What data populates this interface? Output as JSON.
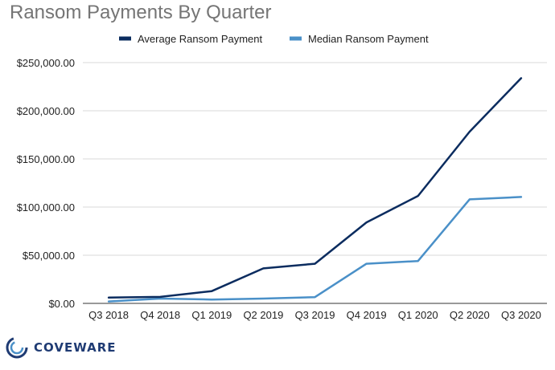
{
  "chart_data": {
    "type": "line",
    "title": "Ransom Payments By Quarter",
    "categories": [
      "Q3 2018",
      "Q4 2018",
      "Q1 2019",
      "Q2 2019",
      "Q3 2019",
      "Q4 2019",
      "Q1 2020",
      "Q2 2020",
      "Q3 2020"
    ],
    "series": [
      {
        "name": "Average Ransom Payment",
        "color": "#0b2c5f",
        "values": [
          5974,
          6733,
          12762,
          36295,
          41198,
          84116,
          111605,
          178254,
          233817
        ]
      },
      {
        "name": "Median Ransom Payment",
        "color": "#4a90c8",
        "values": [
          2000,
          5000,
          4000,
          5000,
          6500,
          41179,
          44021,
          108000,
          110532
        ]
      }
    ],
    "yticks": [
      "$0.00",
      "$50,000.00",
      "$100,000.00",
      "$150,000.00",
      "$200,000.00",
      "$250,000.00"
    ],
    "ylim": [
      0,
      250000
    ],
    "grid": true,
    "legend_position": "top"
  },
  "logo": {
    "text": "COVEWARE",
    "icon": "coveware-swirl-icon",
    "color": "#1f3b73"
  }
}
